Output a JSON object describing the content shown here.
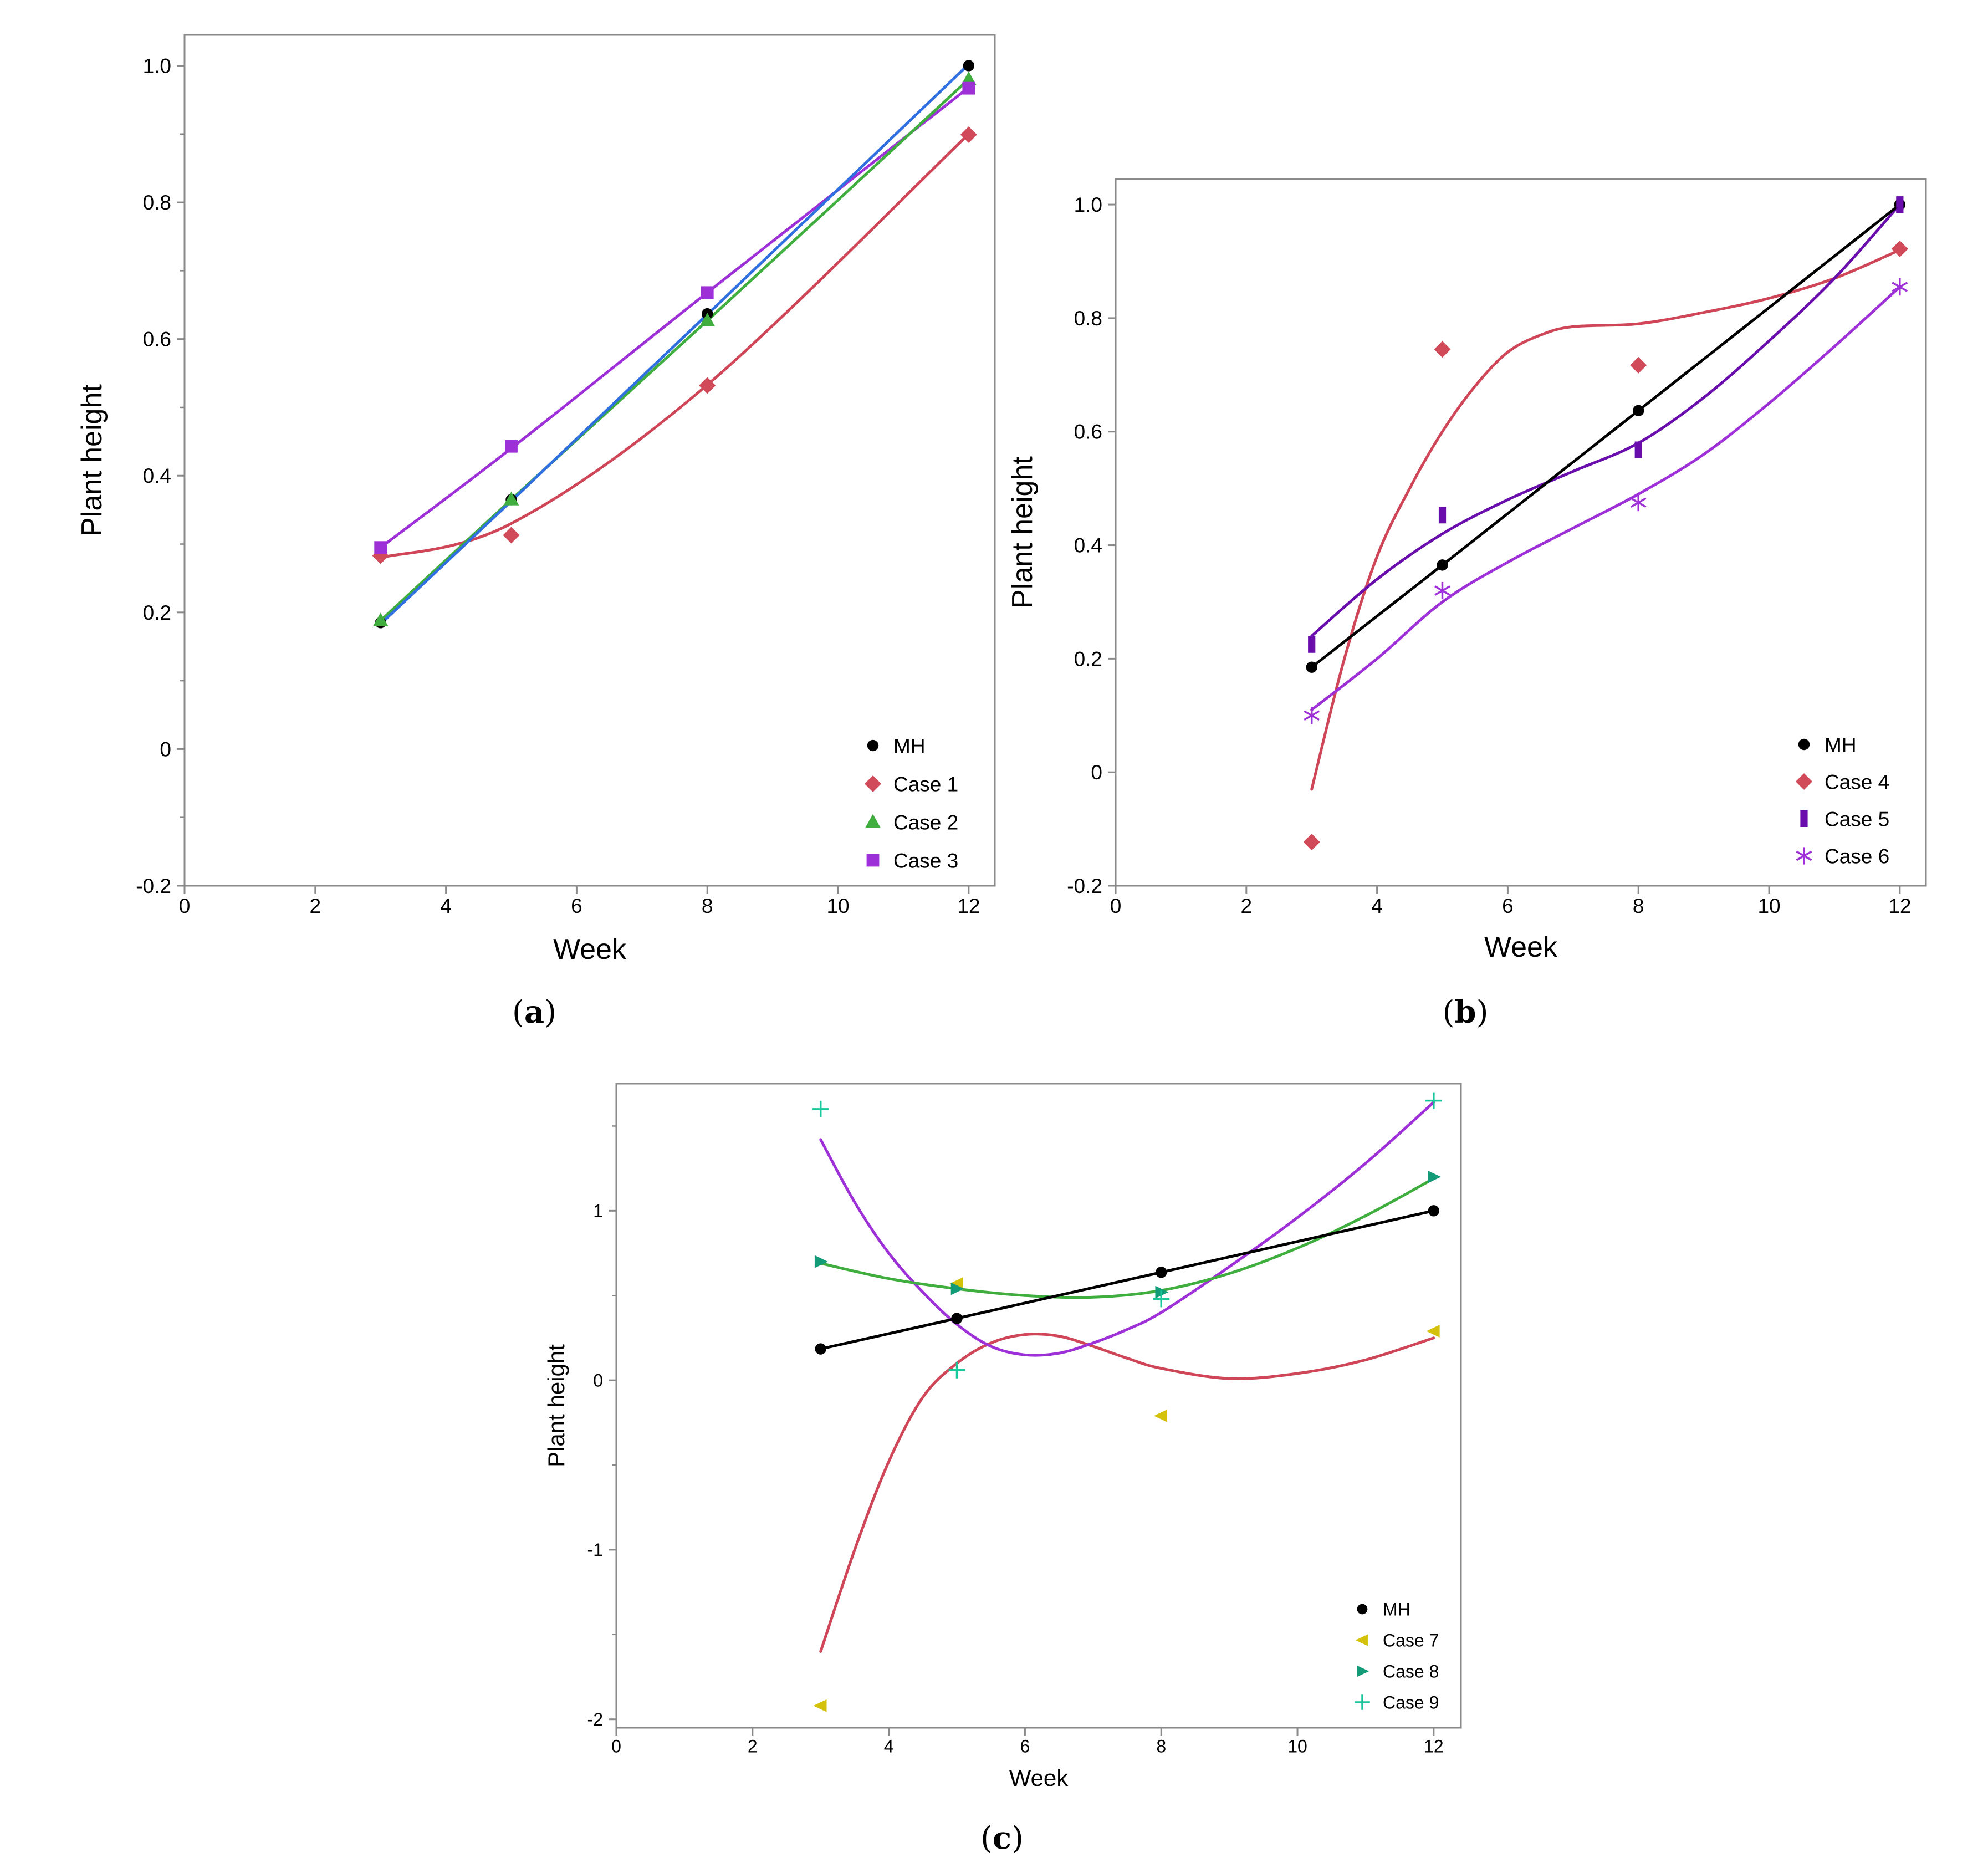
{
  "colors": {
    "mh": "#000000",
    "case1": "#d04a5a",
    "case2": "#3fae3f",
    "case3": "#9e30d8",
    "case4": "#d04a5a",
    "case5": "#6a0dad",
    "case6": "#9e30d8",
    "case7": "#d4c20a",
    "case8": "#139a76",
    "case9": "#19c79b",
    "fit_red": "#cf4658",
    "fit_purple": "#9e30d8",
    "fit_green": "#3fae3f",
    "fit_blue": "#2f6fe0",
    "frame": "#8a8a8a"
  },
  "chart_data": [
    {
      "id": "a",
      "caption": "a",
      "type": "scatter",
      "xlabel": "Week",
      "ylabel": "Plant height",
      "xlim": [
        0,
        12.4
      ],
      "ylim": [
        -0.2,
        1.045
      ],
      "xticks": [
        0,
        2,
        4,
        6,
        8,
        10,
        12
      ],
      "yticks": [
        -0.2,
        0,
        0.2,
        0.4,
        0.6,
        0.8,
        1.0
      ],
      "xtick_labels": [
        "0",
        "2",
        "4",
        "6",
        "8",
        "10",
        "12"
      ],
      "ytick_labels": [
        "-0.2",
        "0",
        "0.2",
        "0.4",
        "0.6",
        "0.8",
        "1.0"
      ],
      "legend_position": "bottom-right",
      "series": [
        {
          "name": "MH",
          "marker": "circle",
          "color": "#000000",
          "x": [
            3,
            5,
            8,
            12
          ],
          "y": [
            0.185,
            0.365,
            0.637,
            1.0
          ]
        },
        {
          "name": "Case 1",
          "marker": "diamond",
          "color": "#d04a5a",
          "x": [
            3,
            5,
            8,
            12
          ],
          "y": [
            0.283,
            0.313,
            0.532,
            0.899
          ]
        },
        {
          "name": "Case 2",
          "marker": "triangle",
          "color": "#3fae3f",
          "x": [
            3,
            5,
            8,
            12
          ],
          "y": [
            0.188,
            0.365,
            0.627,
            0.98
          ]
        },
        {
          "name": "Case 3",
          "marker": "square",
          "color": "#9e30d8",
          "x": [
            3,
            5,
            8,
            12
          ],
          "y": [
            0.295,
            0.443,
            0.668,
            0.967
          ]
        }
      ],
      "fits": [
        {
          "color": "#cf4658",
          "x": [
            3,
            5,
            8,
            12
          ],
          "y": [
            0.28,
            0.33,
            0.533,
            0.9
          ]
        },
        {
          "color": "#9e30d8",
          "x": [
            3,
            5,
            8,
            12
          ],
          "y": [
            0.295,
            0.44,
            0.668,
            0.968
          ]
        },
        {
          "color": "#3fae3f",
          "x": [
            3,
            5,
            8,
            12
          ],
          "y": [
            0.188,
            0.365,
            0.627,
            0.98
          ]
        },
        {
          "color": "#2f6fe0",
          "x": [
            3,
            5,
            8,
            12
          ],
          "y": [
            0.183,
            0.363,
            0.636,
            1.002
          ]
        }
      ]
    },
    {
      "id": "b",
      "caption": "b",
      "type": "scatter",
      "xlabel": "Week",
      "ylabel": "Plant height",
      "xlim": [
        0,
        12.4
      ],
      "ylim": [
        -0.2,
        1.045
      ],
      "xticks": [
        0,
        2,
        4,
        6,
        8,
        10,
        12
      ],
      "yticks": [
        -0.2,
        0,
        0.2,
        0.4,
        0.6,
        0.8,
        1.0
      ],
      "xtick_labels": [
        "0",
        "2",
        "4",
        "6",
        "8",
        "10",
        "12"
      ],
      "ytick_labels": [
        "-0.2",
        "0",
        "0.2",
        "0.4",
        "0.6",
        "0.8",
        "1.0"
      ],
      "legend_position": "bottom-right",
      "series": [
        {
          "name": "MH",
          "marker": "circle",
          "color": "#000000",
          "x": [
            3,
            5,
            8,
            12
          ],
          "y": [
            0.185,
            0.365,
            0.637,
            1.0
          ]
        },
        {
          "name": "Case 4",
          "marker": "diamond",
          "color": "#d04a5a",
          "x": [
            3,
            5,
            8,
            12
          ],
          "y": [
            -0.123,
            0.745,
            0.717,
            0.922
          ]
        },
        {
          "name": "Case 5",
          "marker": "bar",
          "color": "#6a0dad",
          "x": [
            3,
            5,
            8,
            12
          ],
          "y": [
            0.225,
            0.453,
            0.568,
            1.0
          ]
        },
        {
          "name": "Case 6",
          "marker": "star",
          "color": "#9e30d8",
          "x": [
            3,
            5,
            8,
            12
          ],
          "y": [
            0.1,
            0.32,
            0.475,
            0.855
          ]
        }
      ],
      "fits": [
        {
          "color": "#cf4658",
          "x": [
            3,
            3.5,
            4,
            4.5,
            5,
            5.5,
            6,
            6.5,
            7,
            8,
            9,
            10,
            11,
            12
          ],
          "y": [
            -0.03,
            0.2,
            0.38,
            0.5,
            0.6,
            0.68,
            0.74,
            0.77,
            0.785,
            0.79,
            0.81,
            0.835,
            0.87,
            0.92
          ]
        },
        {
          "color": "#6a0dad",
          "x": [
            3,
            4,
            5,
            6,
            7,
            8,
            9,
            10,
            11,
            12
          ],
          "y": [
            0.24,
            0.34,
            0.42,
            0.48,
            0.53,
            0.58,
            0.66,
            0.76,
            0.87,
            1.0
          ]
        },
        {
          "color": "#9e30d8",
          "x": [
            3,
            4,
            5,
            6,
            7,
            8,
            9,
            10,
            11,
            12
          ],
          "y": [
            0.11,
            0.2,
            0.3,
            0.37,
            0.43,
            0.49,
            0.56,
            0.65,
            0.75,
            0.855
          ]
        },
        {
          "color": "#000000",
          "x": [
            3,
            5,
            8,
            12
          ],
          "y": [
            0.185,
            0.365,
            0.637,
            1.0
          ]
        }
      ]
    },
    {
      "id": "c",
      "caption": "c",
      "type": "scatter",
      "xlabel": "Week",
      "ylabel": "Plant height",
      "xlim": [
        0,
        12.4
      ],
      "ylim": [
        -2.05,
        1.75
      ],
      "xticks": [
        0,
        2,
        4,
        6,
        8,
        10,
        12
      ],
      "yticks": [
        -2,
        -1,
        0,
        1
      ],
      "xtick_labels": [
        "0",
        "2",
        "4",
        "6",
        "8",
        "10",
        "12"
      ],
      "ytick_labels": [
        "-2",
        "-1",
        "0",
        "1"
      ],
      "minor_yticks": [
        -1.5,
        -0.5,
        0.5,
        1.5
      ],
      "legend_position": "bottom-right",
      "series": [
        {
          "name": "MH",
          "marker": "circle",
          "color": "#000000",
          "x": [
            3,
            5,
            8,
            12
          ],
          "y": [
            0.185,
            0.365,
            0.637,
            1.0
          ]
        },
        {
          "name": "Case 7",
          "marker": "triangle-left",
          "color": "#d4c20a",
          "x": [
            3,
            5,
            8,
            12
          ],
          "y": [
            -1.92,
            0.57,
            -0.21,
            0.29
          ]
        },
        {
          "name": "Case 8",
          "marker": "triangle-right",
          "color": "#139a76",
          "x": [
            3,
            5,
            8,
            12
          ],
          "y": [
            0.7,
            0.54,
            0.52,
            1.2
          ]
        },
        {
          "name": "Case 9",
          "marker": "plus",
          "color": "#19c79b",
          "x": [
            3,
            5,
            8,
            12
          ],
          "y": [
            1.6,
            0.06,
            0.48,
            1.65
          ]
        }
      ],
      "fits": [
        {
          "color": "#cf4658",
          "x": [
            3,
            3.5,
            4,
            4.5,
            5,
            5.5,
            6,
            6.5,
            7,
            7.5,
            8,
            9,
            10,
            11,
            12
          ],
          "y": [
            -1.6,
            -1.0,
            -0.48,
            -0.1,
            0.1,
            0.22,
            0.27,
            0.26,
            0.2,
            0.13,
            0.07,
            0.01,
            0.04,
            0.12,
            0.25
          ]
        },
        {
          "color": "#9e30d8",
          "x": [
            3,
            3.5,
            4,
            4.5,
            5,
            5.5,
            6,
            6.5,
            7,
            7.5,
            8,
            9,
            10,
            11,
            12
          ],
          "y": [
            1.42,
            1.05,
            0.75,
            0.52,
            0.33,
            0.2,
            0.15,
            0.16,
            0.22,
            0.3,
            0.4,
            0.67,
            0.96,
            1.28,
            1.64
          ]
        },
        {
          "color": "#3fae3f",
          "x": [
            3,
            4,
            5,
            6,
            7,
            8,
            9,
            10,
            11,
            12
          ],
          "y": [
            0.69,
            0.6,
            0.54,
            0.5,
            0.49,
            0.53,
            0.63,
            0.78,
            0.97,
            1.19
          ]
        },
        {
          "color": "#000000",
          "x": [
            3,
            5,
            8,
            12
          ],
          "y": [
            0.185,
            0.365,
            0.637,
            1.0
          ]
        }
      ]
    }
  ]
}
